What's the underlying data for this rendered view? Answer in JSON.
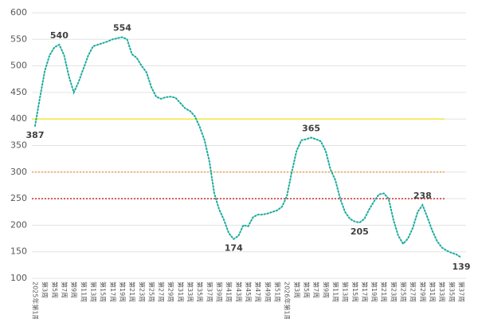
{
  "chart_data": {
    "type": "line",
    "categories": [
      "2025年第1周",
      null,
      "第3周",
      null,
      "第5周",
      null,
      "第7周",
      null,
      "第9周",
      null,
      "第11周",
      null,
      "第13周",
      null,
      "第15周",
      null,
      "第17周",
      null,
      "第19周",
      null,
      "第21周",
      null,
      "第23周",
      null,
      "第25周",
      null,
      "第27周",
      null,
      "第29周",
      null,
      "第31周",
      null,
      "第33周",
      null,
      "第35周",
      null,
      "第37周",
      null,
      "第39周",
      null,
      "第41周",
      null,
      "第43周",
      null,
      "第45周",
      null,
      "第47周",
      null,
      "第49周",
      null,
      "第51周",
      null,
      "2026年第1周",
      null,
      "第3周",
      null,
      "第5周",
      null,
      "第7周",
      null,
      "第9周",
      null,
      "第11周",
      null,
      "第13周",
      null,
      "第15周",
      null,
      "第17周",
      null,
      "第19周",
      null,
      "第21周",
      null,
      "第23周",
      null,
      "第25周",
      null,
      "第27周",
      null,
      "第29周",
      null,
      "第31周",
      null,
      "第33周",
      null,
      "第35周",
      null,
      "第37周"
    ],
    "values": [
      387,
      440,
      490,
      520,
      535,
      540,
      520,
      480,
      450,
      470,
      495,
      520,
      537,
      540,
      543,
      546,
      550,
      552,
      554,
      550,
      522,
      515,
      500,
      488,
      460,
      442,
      438,
      441,
      442,
      440,
      430,
      420,
      415,
      405,
      385,
      360,
      320,
      260,
      230,
      210,
      185,
      174,
      180,
      200,
      198,
      215,
      220,
      220,
      222,
      225,
      228,
      235,
      255,
      300,
      340,
      360,
      362,
      365,
      362,
      358,
      340,
      305,
      285,
      250,
      225,
      212,
      207,
      205,
      212,
      230,
      245,
      258,
      260,
      250,
      210,
      180,
      165,
      175,
      195,
      225,
      238,
      215,
      190,
      170,
      158,
      152,
      148,
      145,
      139
    ],
    "color": "#1aab9b",
    "data_labels_at": [
      0,
      5,
      18,
      41,
      57,
      67,
      80,
      88
    ],
    "reference_lines": [
      {
        "value": 400,
        "color": "#f2e640"
      },
      {
        "value": 300,
        "color": "#f0a050"
      },
      {
        "value": 250,
        "color": "#d62728"
      }
    ],
    "ylim": [
      100,
      600
    ],
    "yticks": [
      100,
      150,
      200,
      250,
      300,
      350,
      400,
      450,
      500,
      550,
      600
    ],
    "grid": true
  }
}
